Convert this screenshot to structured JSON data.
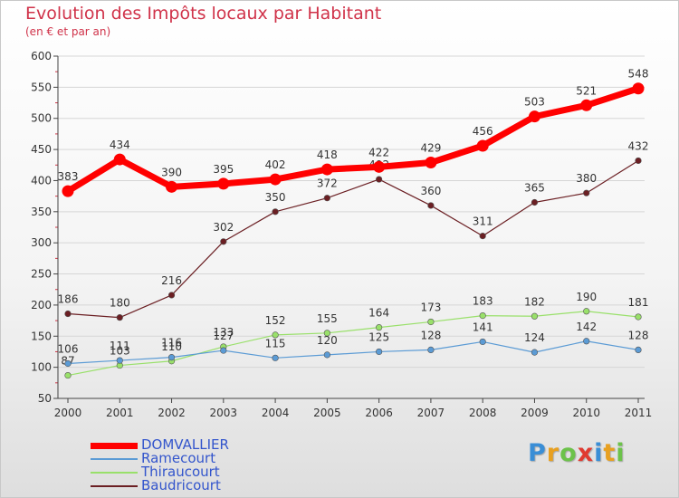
{
  "header": {
    "title": "Evolution des Impôts locaux par Habitant",
    "subtitle": "(en € et par an)"
  },
  "chart_data": {
    "type": "line",
    "title": "Evolution des Impôts locaux par Habitant",
    "subtitle": "(en € et par an)",
    "xlabel": "",
    "ylabel": "",
    "categories": [
      "2000",
      "2001",
      "2002",
      "2003",
      "2004",
      "2005",
      "2006",
      "2007",
      "2008",
      "2009",
      "2010",
      "2011"
    ],
    "ylim": [
      50,
      600
    ],
    "yticks": [
      50,
      100,
      150,
      200,
      250,
      300,
      350,
      400,
      450,
      500,
      550,
      600
    ],
    "legend_position": "bottom-left",
    "series": [
      {
        "name": "DOMVALLIER",
        "color": "#ff0000",
        "values": [
          383,
          434,
          390,
          395,
          402,
          418,
          422,
          429,
          456,
          503,
          521,
          548
        ]
      },
      {
        "name": "Ramecourt",
        "color": "#5b9bd5",
        "values": [
          106,
          111,
          116,
          127,
          115,
          120,
          125,
          128,
          141,
          124,
          142,
          128
        ]
      },
      {
        "name": "Thiraucourt",
        "color": "#99e06a",
        "values": [
          87,
          103,
          110,
          133,
          152,
          155,
          164,
          173,
          183,
          182,
          190,
          181
        ]
      },
      {
        "name": "Baudricourt",
        "color": "#6b1f23",
        "values": [
          186,
          180,
          216,
          302,
          350,
          372,
          402,
          360,
          311,
          365,
          380,
          432
        ]
      }
    ]
  },
  "logo": {
    "letters": [
      {
        "ch": "P",
        "color": "#3a8ed6"
      },
      {
        "ch": "r",
        "color": "#e8a020"
      },
      {
        "ch": "o",
        "color": "#6cc24a"
      },
      {
        "ch": "x",
        "color": "#e03a30"
      },
      {
        "ch": "i",
        "color": "#3a8ed6"
      },
      {
        "ch": "t",
        "color": "#e8a020"
      },
      {
        "ch": "i",
        "color": "#6cc24a"
      }
    ]
  }
}
